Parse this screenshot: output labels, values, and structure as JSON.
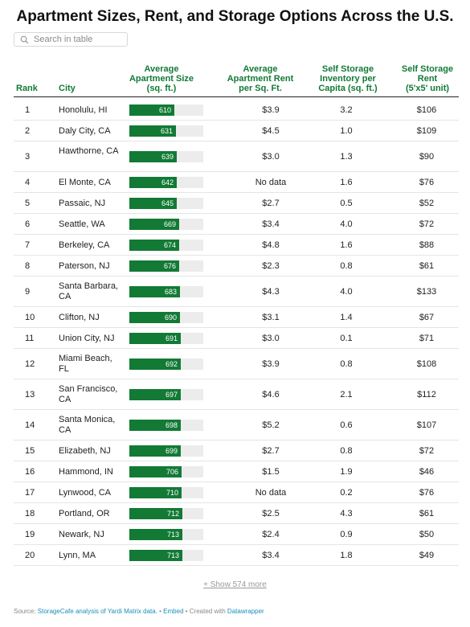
{
  "title": "Apartment Sizes, Rent, and Storage Options Across the U.S.",
  "search": {
    "placeholder": "Search in table",
    "icon": "search-icon"
  },
  "headers": {
    "rank": "Rank",
    "city": "City",
    "size": [
      "Average",
      "Apartment Size",
      "(sq. ft.)"
    ],
    "rent": [
      "Average",
      "Apartment Rent",
      "per Sq. Ft."
    ],
    "inventory": [
      "Self Storage",
      "Inventory per",
      "Capita (sq. ft.)"
    ],
    "storage_rent": [
      "Self Storage",
      "Rent",
      "(5'x5' unit)"
    ]
  },
  "colors": {
    "accent": "#127a35",
    "bar_bg": "#ececec",
    "link": "#1a8fb8"
  },
  "rows": [
    {
      "rank": "1",
      "city": "Honolulu, HI",
      "size": 610,
      "rent": "$3.9",
      "inventory": "3.2",
      "storage_rent": "$106"
    },
    {
      "rank": "2",
      "city": "Daly City, CA",
      "size": 631,
      "rent": "$4.5",
      "inventory": "1.0",
      "storage_rent": "$109"
    },
    {
      "rank": "3",
      "city": "Hawthorne, CA",
      "size": 639,
      "rent": "$3.0",
      "inventory": "1.3",
      "storage_rent": "$90"
    },
    {
      "rank": "4",
      "city": "El Monte, CA",
      "size": 642,
      "rent": "No data",
      "inventory": "1.6",
      "storage_rent": "$76"
    },
    {
      "rank": "5",
      "city": "Passaic, NJ",
      "size": 645,
      "rent": "$2.7",
      "inventory": "0.5",
      "storage_rent": "$52"
    },
    {
      "rank": "6",
      "city": "Seattle, WA",
      "size": 669,
      "rent": "$3.4",
      "inventory": "4.0",
      "storage_rent": "$72"
    },
    {
      "rank": "7",
      "city": "Berkeley, CA",
      "size": 674,
      "rent": "$4.8",
      "inventory": "1.6",
      "storage_rent": "$88"
    },
    {
      "rank": "8",
      "city": "Paterson, NJ",
      "size": 676,
      "rent": "$2.3",
      "inventory": "0.8",
      "storage_rent": "$61"
    },
    {
      "rank": "9",
      "city": "Santa Barbara, CA",
      "size": 683,
      "rent": "$4.3",
      "inventory": "4.0",
      "storage_rent": "$133"
    },
    {
      "rank": "10",
      "city": "Clifton, NJ",
      "size": 690,
      "rent": "$3.1",
      "inventory": "1.4",
      "storage_rent": "$67"
    },
    {
      "rank": "11",
      "city": "Union City, NJ",
      "size": 691,
      "rent": "$3.0",
      "inventory": "0.1",
      "storage_rent": "$71"
    },
    {
      "rank": "12",
      "city": "Miami Beach, FL",
      "size": 692,
      "rent": "$3.9",
      "inventory": "0.8",
      "storage_rent": "$108"
    },
    {
      "rank": "13",
      "city": "San Francisco, CA",
      "size": 697,
      "rent": "$4.6",
      "inventory": "2.1",
      "storage_rent": "$112"
    },
    {
      "rank": "14",
      "city": "Santa Monica, CA",
      "size": 698,
      "rent": "$5.2",
      "inventory": "0.6",
      "storage_rent": "$107"
    },
    {
      "rank": "15",
      "city": "Elizabeth, NJ",
      "size": 699,
      "rent": "$2.7",
      "inventory": "0.8",
      "storage_rent": "$72"
    },
    {
      "rank": "16",
      "city": "Hammond, IN",
      "size": 706,
      "rent": "$1.5",
      "inventory": "1.9",
      "storage_rent": "$46"
    },
    {
      "rank": "17",
      "city": "Lynwood, CA",
      "size": 710,
      "rent": "No data",
      "inventory": "0.2",
      "storage_rent": "$76"
    },
    {
      "rank": "18",
      "city": "Portland, OR",
      "size": 712,
      "rent": "$2.5",
      "inventory": "4.3",
      "storage_rent": "$61"
    },
    {
      "rank": "19",
      "city": "Newark, NJ",
      "size": 713,
      "rent": "$2.4",
      "inventory": "0.9",
      "storage_rent": "$50"
    },
    {
      "rank": "20",
      "city": "Lynn, MA",
      "size": 713,
      "rent": "$3.4",
      "inventory": "1.8",
      "storage_rent": "$49"
    }
  ],
  "show_more": "+ Show 574 more",
  "footer": {
    "source_label": "Source: ",
    "source_link": "StorageCafe analysis of Yardi Matrix data.",
    "sep1": " • ",
    "embed": "Embed",
    "sep2": " • Created with ",
    "created_with": "Datawrapper"
  }
}
